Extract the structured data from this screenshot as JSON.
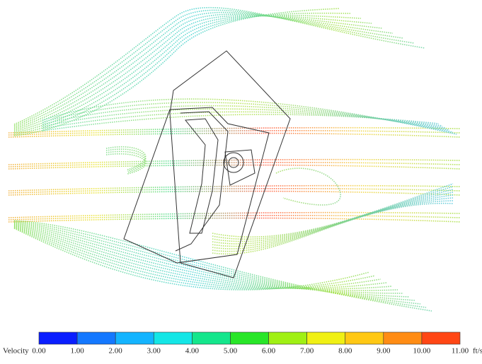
{
  "colorbar": {
    "label": "Velocity",
    "unit": "ft/s",
    "ticks": [
      "0.00",
      "1.00",
      "2.00",
      "3.00",
      "4.00",
      "5.00",
      "6.00",
      "7.00",
      "8.00",
      "9.00",
      "10.00",
      "11.00"
    ],
    "colors": [
      "#0a1eff",
      "#1478ff",
      "#14b4ff",
      "#14e6e6",
      "#14e68c",
      "#28e628",
      "#a0f014",
      "#f0f014",
      "#ffc814",
      "#ff8c14",
      "#ff4614"
    ]
  }
}
